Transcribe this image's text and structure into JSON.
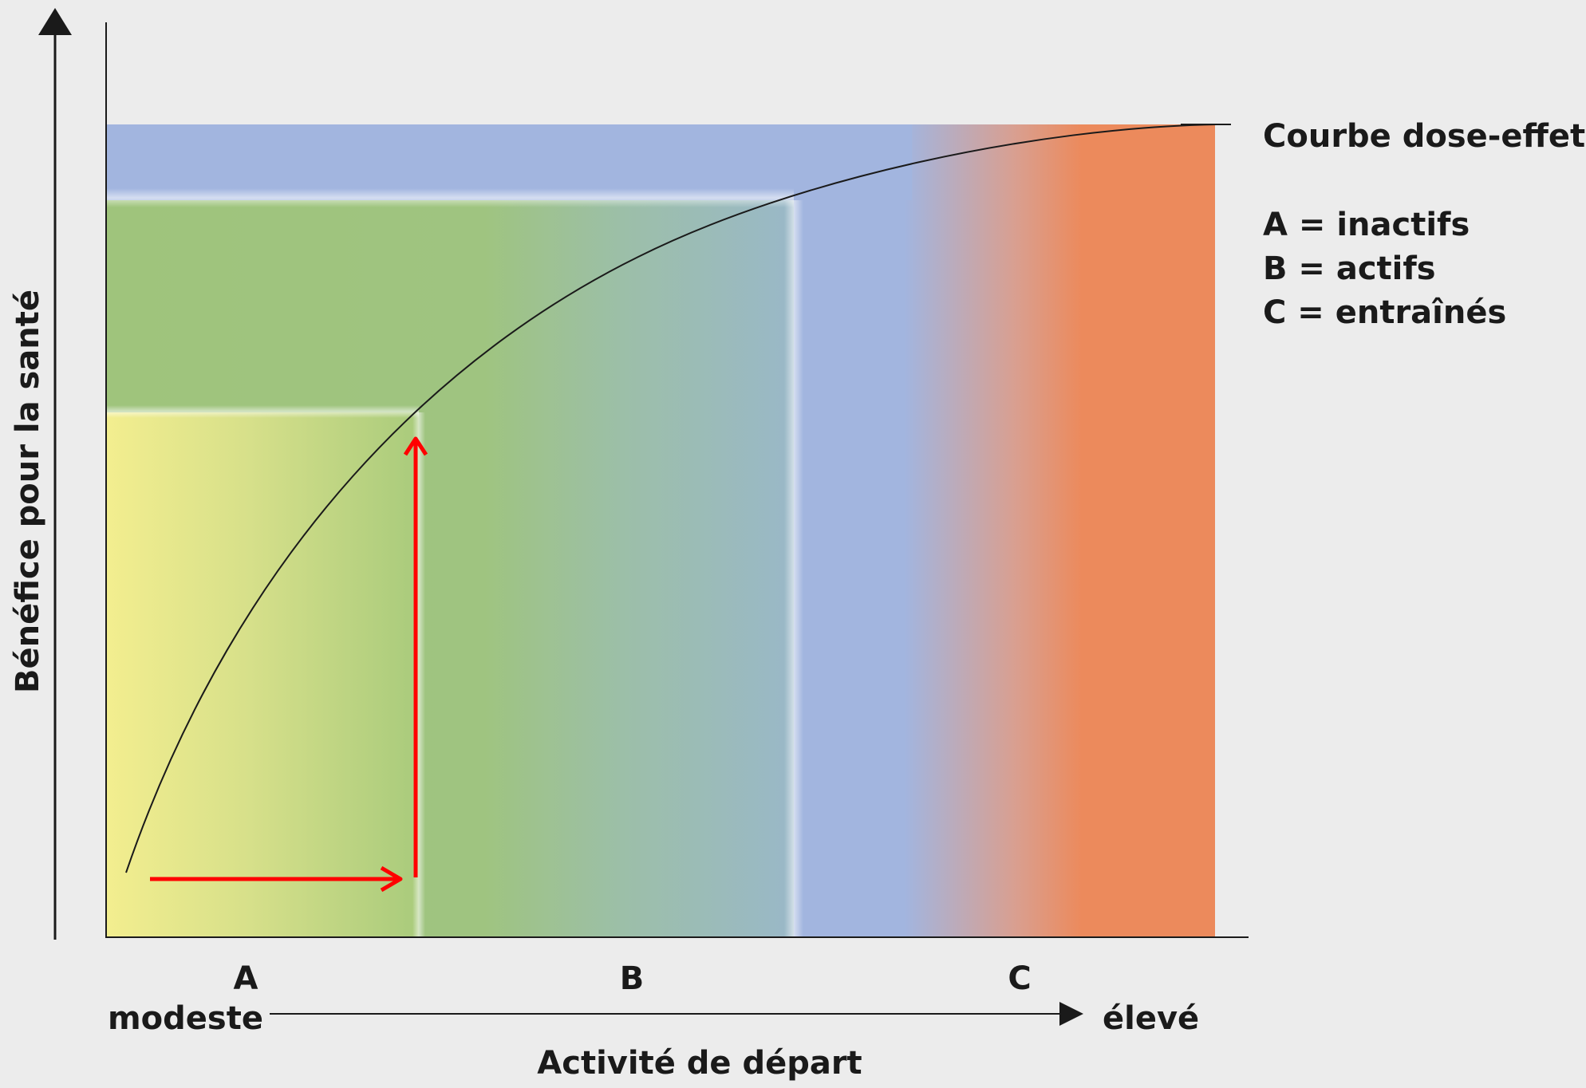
{
  "chart_data": {
    "type": "line",
    "title": "",
    "xlabel": "Activité de départ",
    "ylabel": "Bénéfice pour la santé",
    "x_scale": {
      "low": "modeste",
      "high": "élevé"
    },
    "zones": [
      {
        "label": "A",
        "meaning": "inactifs",
        "color": "#f3ee8f"
      },
      {
        "label": "B",
        "meaning": "actifs",
        "color": "#9fc47c"
      },
      {
        "label": "C",
        "meaning": "entraînés",
        "color": "#ec8a5c"
      }
    ],
    "series": [
      {
        "name": "Courbe dose-effet",
        "shape": "saturating"
      }
    ],
    "legend": {
      "title": "Courbe dose-effet",
      "entries": [
        "A = inactifs",
        "B = actifs",
        "C = entraînés"
      ],
      "placement": "right"
    },
    "colors": {
      "yellow": "#f3ee8f",
      "green": "#9fc47c",
      "blue": "#a2b5df",
      "orange": "#ec8a5c",
      "arrow": "#ff0000",
      "curve": "#1a1a1a"
    }
  },
  "labels": {
    "ylabel": "Bénéfice pour la santé",
    "xlabel": "Activité de départ",
    "modeste": "modeste",
    "eleve": "élevé",
    "zone_a": "A",
    "zone_b": "B",
    "zone_c": "C",
    "legend_title": "Courbe dose-effet",
    "legend_a": "A = inactifs",
    "legend_b": "B = actifs",
    "legend_c": "C = entraînés"
  }
}
